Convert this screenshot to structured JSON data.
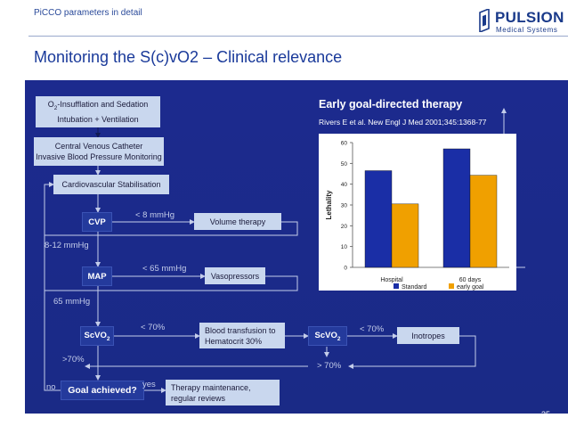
{
  "header": {
    "topline": "PiCCO parameters in detail",
    "title": "Monitoring the S(c)vO2 – Clinical relevance",
    "logo_name": "PULSION",
    "logo_sub": "Medical Systems"
  },
  "flow": {
    "step1_line1_pre": "O",
    "step1_line1_sub": "2",
    "step1_line1_post": "-Insufflation and Sedation",
    "step1_line2": "Intubation + Ventilation",
    "step2_line1": "Central Venous Catheter",
    "step2_line2": "Invasive Blood Pressure Monitoring",
    "step3": "Cardiovascular Stabilisation",
    "cvp": "CVP",
    "cvp_cond": "< 8 mmHg",
    "volume": "Volume therapy",
    "cvp_ok": "8-12 mmHg",
    "map": "MAP",
    "map_cond": "< 65 mmHg",
    "vaso": "Vasopressors",
    "map_ok": "65 mmHg",
    "scvo2_pre": "ScVO",
    "scvo2_sub": "2",
    "scvo2_cond": "< 70%",
    "transfusion_line1": "Blood transfusion to",
    "transfusion_line2": "Hematocrit 30%",
    "scvo2b_cond": "< 70%",
    "inotropes": "Inotropes",
    "scvo2_ok": ">70%",
    "scvo2b_ok": "> 70%",
    "no": "no",
    "goal": "Goal achieved?",
    "yes": "yes",
    "maintenance_line1": "Therapy maintenance,",
    "maintenance_line2": "regular reviews"
  },
  "chart_header": {
    "title": "Early goal-directed therapy",
    "reference": "Rivers E et al. New Engl J Med 2001;345:1368-77"
  },
  "chart_data": {
    "type": "bar",
    "categories": [
      "Hospital",
      "60 days"
    ],
    "series": [
      {
        "name": "Standard",
        "values": [
          46.5,
          57
        ],
        "color": "#1a2ea6"
      },
      {
        "name": "early goal",
        "values": [
          30.5,
          44.3
        ],
        "color": "#f0a000"
      }
    ],
    "ylabel": "Lethality",
    "ylim": [
      0,
      60
    ],
    "yticks": [
      0,
      10,
      20,
      30,
      40,
      50,
      60
    ],
    "legend": "bottom",
    "grid": false
  },
  "footer": {
    "page": "35"
  },
  "colors": {
    "panel": "#1c2a8e",
    "box": "#c9d7ee",
    "decision": "#243a9c",
    "accent": "#1a3a9a"
  }
}
